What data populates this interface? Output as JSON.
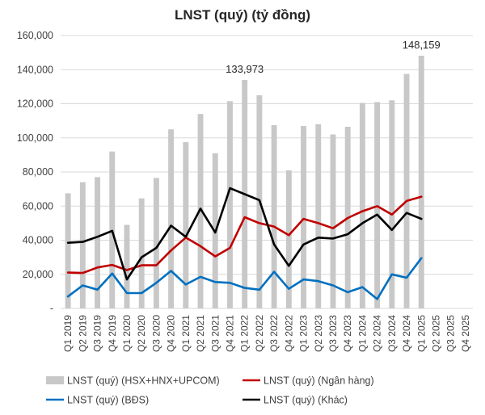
{
  "chart_data": {
    "type": "bar+line",
    "title": "LNST (quý) (tỷ đồng)",
    "categories": [
      "Q1 2019",
      "Q2 2019",
      "Q3 2019",
      "Q4 2019",
      "Q1 2020",
      "Q2 2020",
      "Q3 2020",
      "Q4 2020",
      "Q1 2021",
      "Q2 2021",
      "Q3 2021",
      "Q4 2021",
      "Q1 2022",
      "Q2 2022",
      "Q3 2022",
      "Q4 2022",
      "Q1 2023",
      "Q2 2023",
      "Q3 2023",
      "Q4 2023",
      "Q1 2024",
      "Q2 2024",
      "Q3 2024",
      "Q4 2024",
      "Q1 2025",
      "Q2 2025",
      "Q3 2025",
      "Q4 2025"
    ],
    "ylim": [
      0,
      160000
    ],
    "yticks": [
      {
        "value": 0,
        "label": "-"
      },
      {
        "value": 20000,
        "label": "20,000"
      },
      {
        "value": 40000,
        "label": "40,000"
      },
      {
        "value": 60000,
        "label": "60,000"
      },
      {
        "value": 80000,
        "label": "80,000"
      },
      {
        "value": 100000,
        "label": "100,000"
      },
      {
        "value": 120000,
        "label": "120,000"
      },
      {
        "value": 140000,
        "label": "140,000"
      },
      {
        "value": 160000,
        "label": "160,000"
      }
    ],
    "grid": true,
    "series": [
      {
        "name": "LNST (quý) (HSX+HNX+UPCOM)",
        "kind": "bar",
        "color": "#c8c8c8",
        "values": [
          67500,
          74000,
          77000,
          92000,
          49000,
          64500,
          76500,
          105000,
          97500,
          114000,
          91000,
          121500,
          133973,
          125000,
          107500,
          81000,
          107000,
          108000,
          102000,
          106500,
          120500,
          121000,
          122000,
          137500,
          148159,
          null,
          null,
          null
        ]
      },
      {
        "name": "LNST (quý) (Ngân hàng)",
        "kind": "line",
        "color": "#c00000",
        "values": [
          21000,
          20800,
          24000,
          25500,
          22500,
          25300,
          25300,
          34000,
          41500,
          36500,
          30500,
          35500,
          53500,
          50000,
          48000,
          43000,
          52500,
          50000,
          47000,
          53000,
          57000,
          60000,
          55000,
          63000,
          65500,
          null,
          null,
          null
        ]
      },
      {
        "name": "LNST (quý) (BĐS)",
        "kind": "line",
        "color": "#0070c0",
        "values": [
          7000,
          13500,
          11000,
          20500,
          9000,
          9000,
          15000,
          22000,
          14000,
          18500,
          15500,
          15000,
          12000,
          11000,
          21500,
          11500,
          17000,
          16000,
          13500,
          9500,
          12500,
          5500,
          20000,
          18000,
          29500,
          null,
          null,
          null
        ]
      },
      {
        "name": "LNST (quý) (Khác)",
        "kind": "line",
        "color": "#000000",
        "values": [
          38500,
          39000,
          42000,
          45500,
          17000,
          30000,
          35500,
          48500,
          42000,
          58500,
          44500,
          70500,
          67000,
          63500,
          37500,
          25000,
          37500,
          41500,
          41000,
          43500,
          50000,
          55000,
          46000,
          56000,
          52500,
          null,
          null,
          null
        ]
      }
    ],
    "annotations": [
      {
        "category": "Q1 2022",
        "value": 133973,
        "label": "133,973"
      },
      {
        "category": "Q1 2025",
        "value": 148159,
        "label": "148,159"
      }
    ],
    "legend": {
      "position": "bottom",
      "columns": 2
    }
  }
}
